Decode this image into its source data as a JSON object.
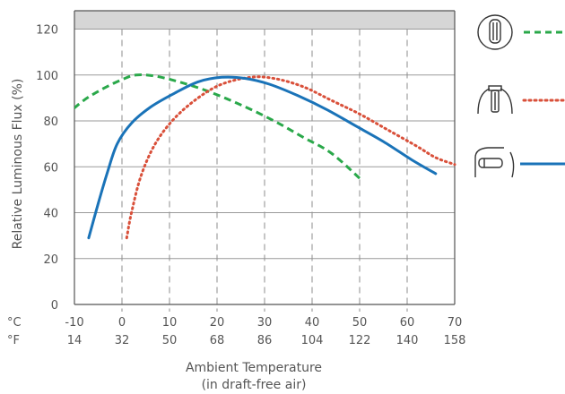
{
  "chart_data": {
    "type": "line",
    "title": "",
    "ylabel": "Relative Luminous Flux (%)",
    "xlabel": "Ambient Temperature",
    "xlabel_sub": "(in draft-free air)",
    "x_unit_celsius": "°C",
    "x_unit_fahrenheit": "°F",
    "xlim": [
      -10,
      70
    ],
    "ylim": [
      0,
      120
    ],
    "x_ticks_celsius": [
      "-10",
      "0",
      "10",
      "20",
      "30",
      "40",
      "50",
      "60",
      "70"
    ],
    "x_ticks_fahrenheit": [
      "14",
      "32",
      "50",
      "68",
      "86",
      "104",
      "122",
      "140",
      "158"
    ],
    "y_ticks": [
      "0",
      "20",
      "40",
      "60",
      "80",
      "100",
      "120"
    ],
    "grid": "vertical-dashed, horizontal-solid",
    "legend_position": "right",
    "highlight_band": [
      120,
      126
    ],
    "series": [
      {
        "icon": "lamp-base-up-icon",
        "color": "#2aa84a",
        "style": "dashed",
        "points": [
          [
            -12,
            82
          ],
          [
            -8,
            89
          ],
          [
            -4,
            94
          ],
          [
            0,
            98
          ],
          [
            3,
            100
          ],
          [
            7,
            99.5
          ],
          [
            12,
            97
          ],
          [
            18,
            93
          ],
          [
            25,
            87
          ],
          [
            32,
            80
          ],
          [
            38,
            73
          ],
          [
            44,
            66
          ],
          [
            50,
            55
          ]
        ]
      },
      {
        "icon": "lamp-vertical-icon",
        "color": "#d9503a",
        "style": "dotted",
        "points": [
          [
            1,
            29
          ],
          [
            2,
            40
          ],
          [
            4,
            56
          ],
          [
            7,
            70
          ],
          [
            11,
            81
          ],
          [
            16,
            90
          ],
          [
            21,
            96
          ],
          [
            27,
            99
          ],
          [
            32,
            98.5
          ],
          [
            38,
            95
          ],
          [
            44,
            89
          ],
          [
            50,
            83
          ],
          [
            56,
            76
          ],
          [
            62,
            69
          ],
          [
            66,
            64
          ],
          [
            70,
            61
          ]
        ]
      },
      {
        "icon": "lamp-horizontal-icon",
        "color": "#1a73b8",
        "style": "solid",
        "points": [
          [
            -7,
            29
          ],
          [
            -5,
            44
          ],
          [
            -3,
            58
          ],
          [
            -1,
            70
          ],
          [
            2,
            79
          ],
          [
            6,
            86
          ],
          [
            11,
            92
          ],
          [
            16,
            97
          ],
          [
            21,
            99
          ],
          [
            26,
            98.5
          ],
          [
            31,
            96
          ],
          [
            37,
            91
          ],
          [
            43,
            85
          ],
          [
            49,
            78
          ],
          [
            55,
            71
          ],
          [
            61,
            63
          ],
          [
            66,
            57
          ]
        ]
      }
    ]
  }
}
